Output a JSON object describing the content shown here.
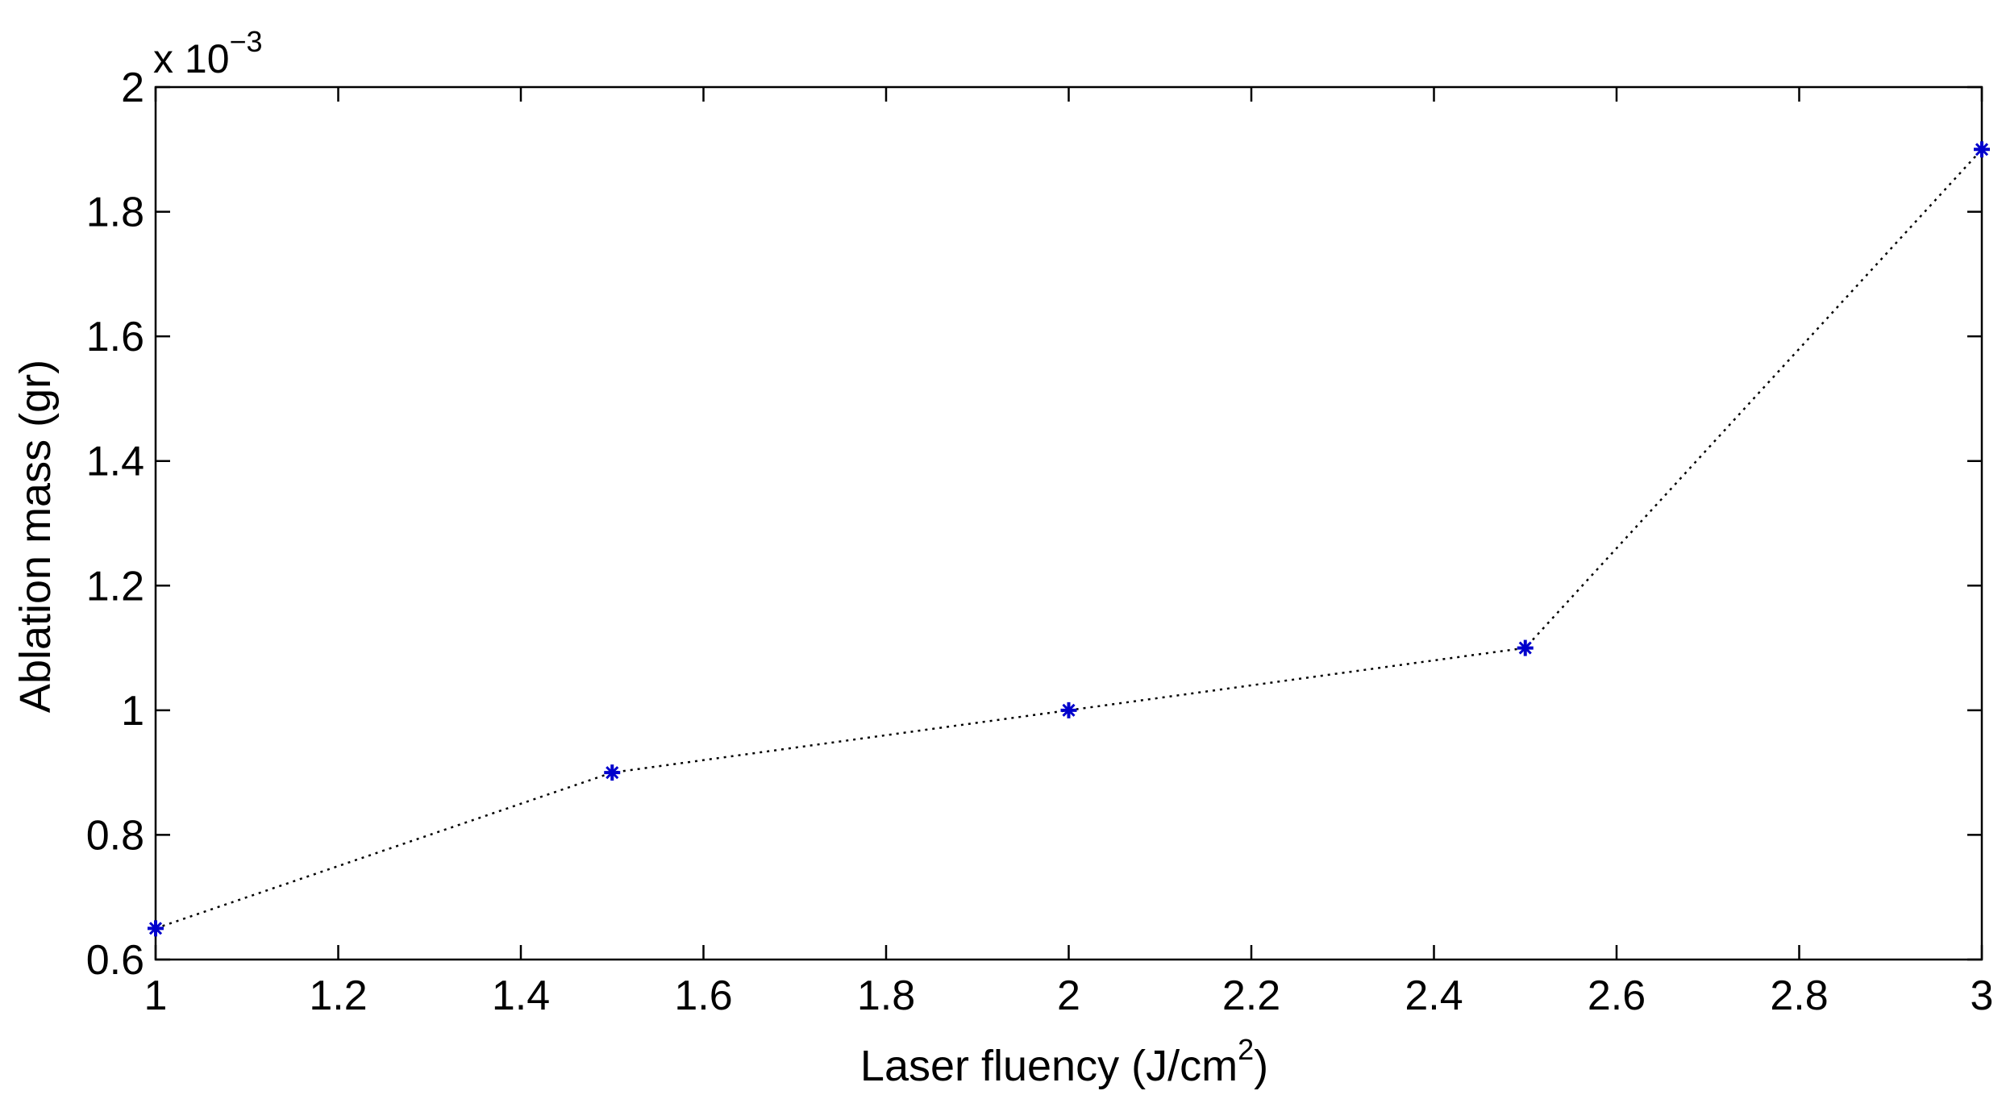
{
  "chart_data": {
    "type": "line",
    "title": "",
    "xlabel": "Laser fluency (J/cm",
    "xlabel_sup": "2",
    "xlabel_close": ")",
    "ylabel": "Ablation mass (gr)",
    "y_multiplier_prefix": "x 10",
    "y_multiplier_exponent": "−3",
    "x_scale": "linear",
    "y_scale": "linear",
    "xlim": [
      1,
      3
    ],
    "ylim": [
      0.6,
      2
    ],
    "x_ticks": [
      1,
      1.2,
      1.4,
      1.6,
      1.8,
      2,
      2.2,
      2.4,
      2.6,
      2.8,
      3
    ],
    "x_tick_labels": [
      "1",
      "1.2",
      "1.4",
      "1.6",
      "1.8",
      "2",
      "2.2",
      "2.4",
      "2.6",
      "2.8",
      "3"
    ],
    "y_ticks": [
      0.6,
      0.8,
      1,
      1.2,
      1.4,
      1.6,
      1.8,
      2
    ],
    "y_tick_labels": [
      "0.6",
      "0.8",
      "1",
      "1.2",
      "1.4",
      "1.6",
      "1.8",
      "2"
    ],
    "grid": false,
    "legend": "none",
    "series": [
      {
        "x": [
          1,
          1.5,
          2,
          2.5,
          3
        ],
        "y": [
          0.65,
          0.9,
          1.0,
          1.1,
          1.9
        ],
        "color": "#0000cc",
        "line_style": "dotted",
        "marker": "star"
      }
    ]
  }
}
